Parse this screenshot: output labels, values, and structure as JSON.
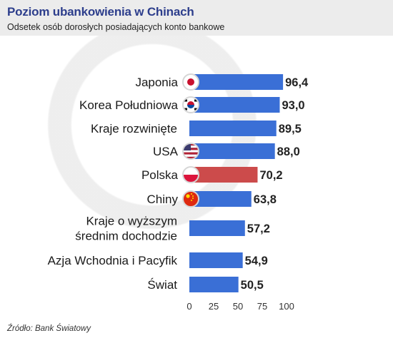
{
  "header": {
    "title": "Poziom ubankowienia w Chinach",
    "subtitle": "Odsetek osób dorosłych posiadających konto bankowe"
  },
  "source": "Źródło: Bank Światowy",
  "chart_data": {
    "type": "bar",
    "orientation": "horizontal",
    "title": "Poziom ubankowienia w Chinach",
    "subtitle": "Odsetek osób dorosłych posiadających konto bankowe",
    "xlabel": "",
    "ylabel": "",
    "xlim": [
      0,
      100
    ],
    "ticks": [
      "0",
      "25",
      "50",
      "75",
      "100"
    ],
    "grid": false,
    "categories": [
      {
        "label_lines": [
          "Japonia"
        ],
        "value": 96.4,
        "value_label": "96,4",
        "color": "#3a6fd6",
        "flag": "japan-flag-icon"
      },
      {
        "label_lines": [
          "Korea Południowa"
        ],
        "value": 93.0,
        "value_label": "93,0",
        "color": "#3a6fd6",
        "flag": "south-korea-flag-icon"
      },
      {
        "label_lines": [
          "Kraje rozwinięte"
        ],
        "value": 89.5,
        "value_label": "89,5",
        "color": "#3a6fd6",
        "flag": null
      },
      {
        "label_lines": [
          "USA"
        ],
        "value": 88.0,
        "value_label": "88,0",
        "color": "#3a6fd6",
        "flag": "usa-flag-icon"
      },
      {
        "label_lines": [
          "Polska"
        ],
        "value": 70.2,
        "value_label": "70,2",
        "color": "#cc4b4b",
        "flag": "poland-flag-icon"
      },
      {
        "label_lines": [
          "Chiny"
        ],
        "value": 63.8,
        "value_label": "63,8",
        "color": "#3a6fd6",
        "flag": "china-flag-icon"
      },
      {
        "label_lines": [
          "Kraje o wyższym",
          "średnim dochodzie"
        ],
        "value": 57.2,
        "value_label": "57,2",
        "color": "#3a6fd6",
        "flag": null
      },
      {
        "label_lines": [
          "Azja Wchodnia i Pacyfik"
        ],
        "value": 54.9,
        "value_label": "54,9",
        "color": "#3a6fd6",
        "flag": null
      },
      {
        "label_lines": [
          "Świat"
        ],
        "value": 50.5,
        "value_label": "50,5",
        "color": "#3a6fd6",
        "flag": null
      }
    ]
  }
}
